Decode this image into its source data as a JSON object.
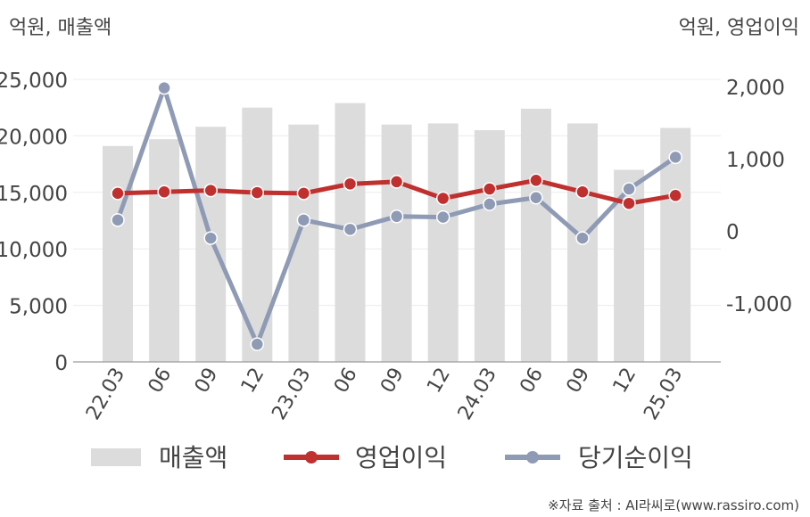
{
  "chart_data": {
    "type": "bar",
    "left_axis_unit": "억원, 매출액",
    "right_axis_unit": "억원, 영업이익",
    "categories": [
      "22.03",
      "06",
      "09",
      "12",
      "23.03",
      "06",
      "09",
      "12",
      "24.03",
      "06",
      "09",
      "12",
      "25.03"
    ],
    "left_ylim": [
      0,
      25000
    ],
    "left_ticks": [
      "0",
      "5,000",
      "10,000",
      "15,000",
      "20,000",
      "25,000"
    ],
    "left_tick_values": [
      0,
      5000,
      10000,
      15000,
      20000,
      25000
    ],
    "right_ylim": [
      -1800,
      2100
    ],
    "right_ticks": [
      "-1,000",
      "0",
      "1,000",
      "2,000"
    ],
    "right_tick_values": [
      -1000,
      0,
      1000,
      2000
    ],
    "grid": true,
    "legend_position": "bottom",
    "series": [
      {
        "name": "매출액",
        "type": "bar",
        "axis": "left",
        "color": "#dcdcdc",
        "values": [
          19100,
          19700,
          20800,
          22500,
          21000,
          22900,
          21000,
          21100,
          20500,
          22400,
          21100,
          17000,
          20700
        ]
      },
      {
        "name": "영업이익",
        "type": "line",
        "axis": "right",
        "color": "#c0302e",
        "values": [
          520,
          540,
          560,
          530,
          520,
          650,
          680,
          450,
          580,
          700,
          540,
          380,
          490
        ]
      },
      {
        "name": "당기순이익",
        "type": "line",
        "axis": "right",
        "color": "#8f9bb5",
        "values": [
          150,
          1980,
          -100,
          -1570,
          150,
          20,
          200,
          190,
          370,
          460,
          -100,
          580,
          1020
        ]
      }
    ]
  },
  "source": "※자료 출처 : AI라씨로(www.rassiro.com)"
}
